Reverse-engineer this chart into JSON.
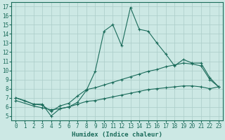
{
  "title": "",
  "xlabel": "Humidex (Indice chaleur)",
  "ylabel": "",
  "bg_color": "#cce8e4",
  "grid_color": "#aaccc8",
  "line_color": "#1a6b5a",
  "xlim": [
    -0.5,
    23.5
  ],
  "ylim": [
    4.5,
    17.5
  ],
  "xticks": [
    0,
    1,
    2,
    3,
    4,
    5,
    6,
    7,
    8,
    9,
    10,
    11,
    12,
    13,
    14,
    15,
    16,
    17,
    18,
    19,
    20,
    21,
    22,
    23
  ],
  "yticks": [
    5,
    6,
    7,
    8,
    9,
    10,
    11,
    12,
    13,
    14,
    15,
    16,
    17
  ],
  "series1_x": [
    0,
    1,
    2,
    3,
    4,
    5,
    6,
    7,
    8,
    9,
    10,
    11,
    12,
    13,
    14,
    15,
    16,
    17,
    18,
    19,
    20,
    21,
    22,
    23
  ],
  "series1_y": [
    7.0,
    6.7,
    6.3,
    6.3,
    5.0,
    5.8,
    6.0,
    6.5,
    7.8,
    9.9,
    14.3,
    15.0,
    12.7,
    16.9,
    14.5,
    14.3,
    13.0,
    11.8,
    10.5,
    11.2,
    10.8,
    10.8,
    9.2,
    8.2
  ],
  "series2_x": [
    0,
    2,
    3,
    4,
    5,
    6,
    7,
    8,
    9,
    10,
    11,
    12,
    13,
    14,
    15,
    16,
    17,
    18,
    19,
    20,
    21,
    22,
    23
  ],
  "series2_y": [
    7.0,
    6.3,
    6.2,
    5.5,
    6.1,
    6.4,
    7.2,
    7.9,
    8.1,
    8.4,
    8.7,
    9.0,
    9.3,
    9.6,
    9.9,
    10.1,
    10.4,
    10.6,
    10.8,
    10.7,
    10.5,
    9.0,
    8.2
  ],
  "series3_x": [
    0,
    2,
    3,
    4,
    5,
    6,
    7,
    8,
    9,
    10,
    11,
    12,
    13,
    14,
    15,
    16,
    17,
    18,
    19,
    20,
    21,
    22,
    23
  ],
  "series3_y": [
    6.7,
    6.1,
    5.9,
    5.7,
    5.8,
    6.0,
    6.3,
    6.6,
    6.7,
    6.9,
    7.1,
    7.3,
    7.5,
    7.7,
    7.9,
    8.0,
    8.1,
    8.2,
    8.3,
    8.3,
    8.2,
    8.0,
    8.2
  ],
  "marker_size": 2.5,
  "line_width": 0.8,
  "font_size_ticks": 5.5,
  "font_size_label": 6.5
}
